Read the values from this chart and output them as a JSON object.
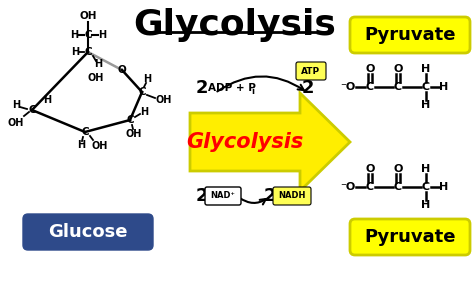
{
  "title": "Glycolysis",
  "title_fontsize": 26,
  "bg_color": "#ffffff",
  "glucose_label": "Glucose",
  "glucose_bg": "#2e4a8a",
  "glucose_fg": "#ffffff",
  "pyruvate_label": "Pyruvate",
  "pyruvate_bg": "#ffff00",
  "pyruvate_fg": "#000000",
  "glycolysis_arrow_color": "#ffee00",
  "glycolysis_arrow_edge": "#cccc00",
  "glycolysis_text": "Glycolysis",
  "glycolysis_text_color": "#ff0000",
  "atp_text": "ATP",
  "atp_bg": "#ffff55",
  "nad_text": "NAD⁺",
  "nadh_text": "NADH",
  "nadh_bg": "#ffff55"
}
